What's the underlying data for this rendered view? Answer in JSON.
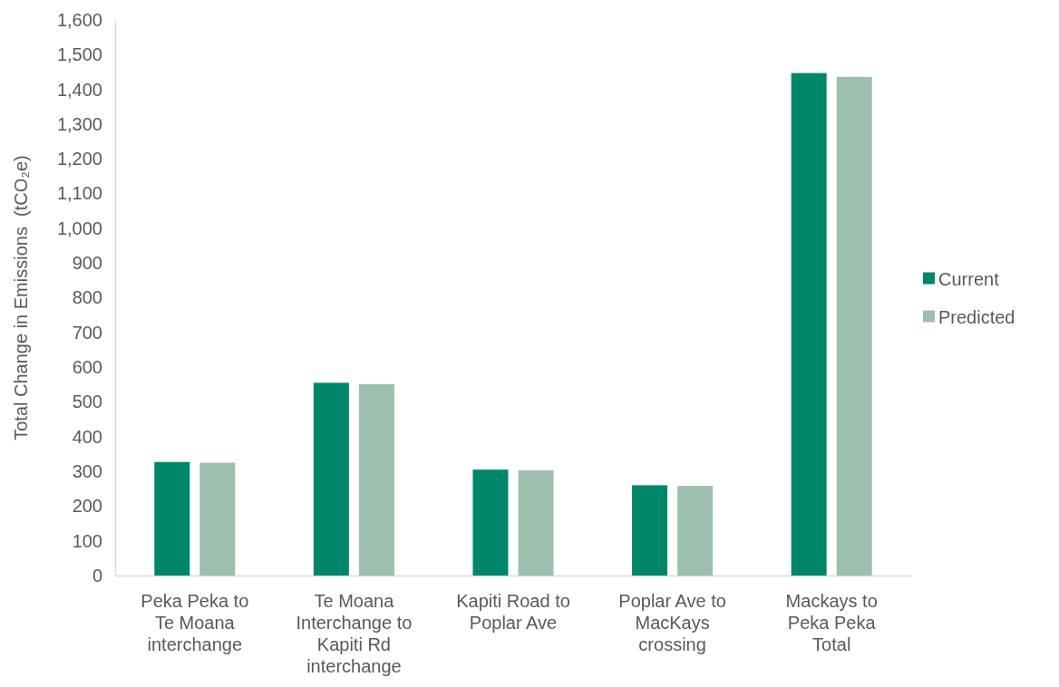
{
  "chart_data": {
    "type": "bar",
    "ylabel": "Total Change in Emissions  (tCO₂e)",
    "categories": [
      "Peka Peka to Te Moana interchange",
      "Te Moana Interchange to Kapiti Rd interchange",
      "Kapiti Road to Poplar Ave",
      "Poplar Ave to MacKays crossing",
      "Mackays to Peka Peka Total"
    ],
    "series": [
      {
        "name": "Current",
        "color": "#00876a",
        "values": [
          327,
          555,
          305,
          260,
          1447
        ]
      },
      {
        "name": "Predicted",
        "color": "#9dbfad",
        "values": [
          325,
          551,
          303,
          258,
          1436
        ]
      }
    ],
    "ylim": [
      0,
      1600
    ],
    "yticks": [
      0,
      100,
      200,
      300,
      400,
      500,
      600,
      700,
      800,
      900,
      {
        "value": 1000,
        "label": "1,000"
      },
      {
        "value": 1100,
        "label": "1,100"
      },
      {
        "value": 1200,
        "label": "1,200"
      },
      {
        "value": 1300,
        "label": "1,300"
      },
      {
        "value": 1400,
        "label": "1,400"
      },
      {
        "value": 1500,
        "label": "1,500"
      },
      {
        "value": 1600,
        "label": "1,600"
      }
    ],
    "legend": "right"
  }
}
